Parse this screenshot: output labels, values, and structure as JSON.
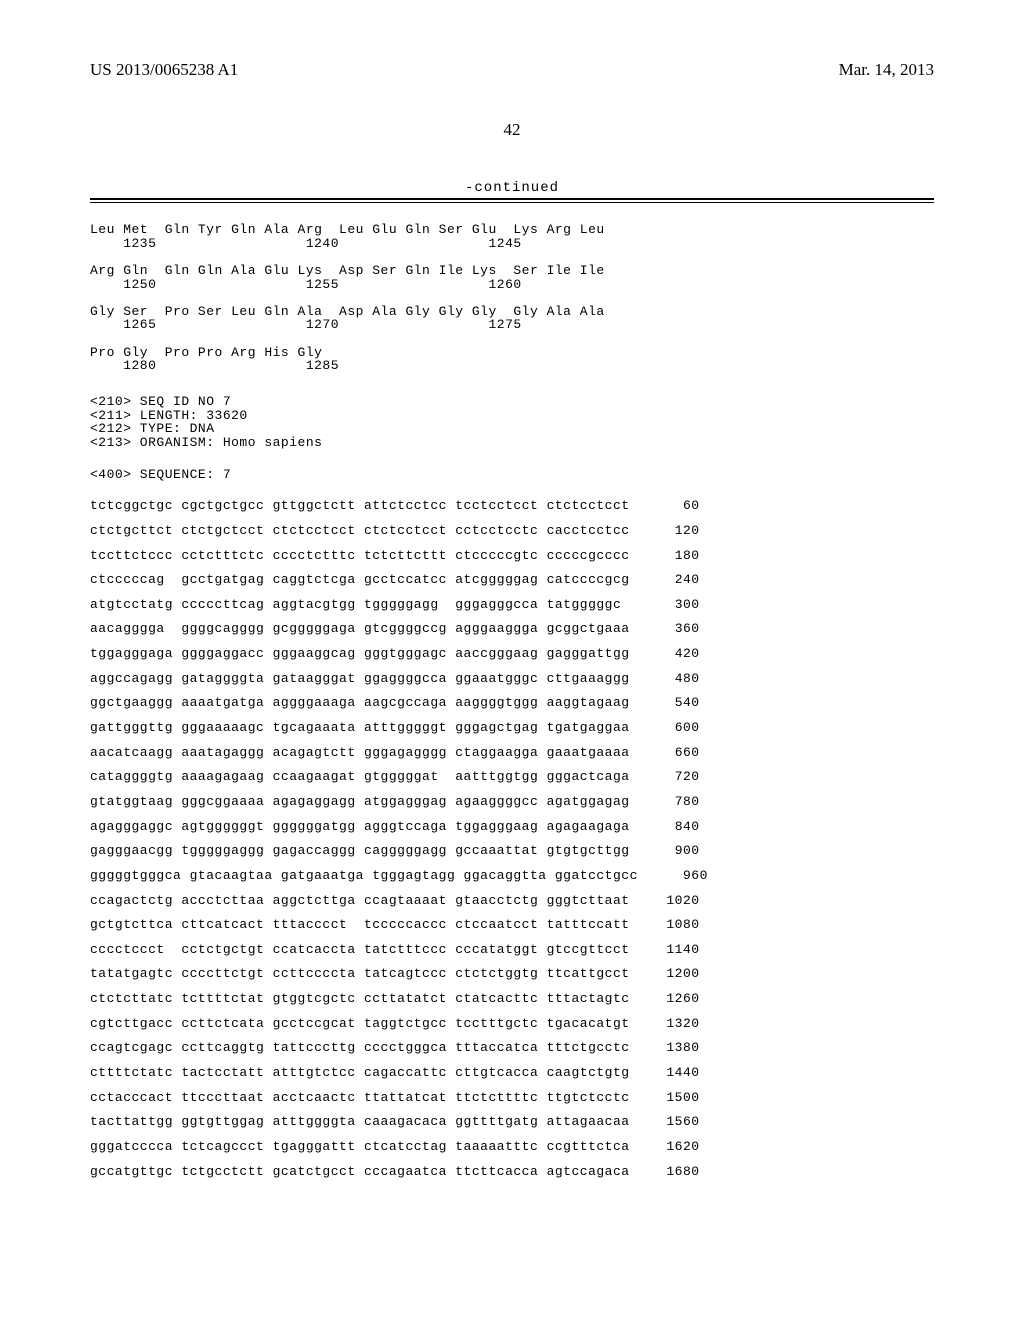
{
  "header": {
    "left": "US 2013/0065238 A1",
    "right": "Mar. 14, 2013"
  },
  "page_number": "42",
  "continued_label": "-continued",
  "protein_rows": [
    {
      "aa": "Leu Met  Gln Tyr Gln Ala Arg  Leu Glu Gln Ser Glu  Lys Arg Leu",
      "pos": "    1235                  1240                  1245"
    },
    {
      "aa": "Arg Gln  Gln Gln Ala Glu Lys  Asp Ser Gln Ile Lys  Ser Ile Ile",
      "pos": "    1250                  1255                  1260"
    },
    {
      "aa": "Gly Ser  Pro Ser Leu Gln Ala  Asp Ala Gly Gly Gly  Gly Ala Ala",
      "pos": "    1265                  1270                  1275"
    },
    {
      "aa": "Pro Gly  Pro Pro Arg His Gly",
      "pos": "    1280                  1285"
    }
  ],
  "meta": [
    "<210> SEQ ID NO 7",
    "<211> LENGTH: 33620",
    "<212> TYPE: DNA",
    "<213> ORGANISM: Homo sapiens"
  ],
  "sequence_label": "<400> SEQUENCE: 7",
  "seq_rows": [
    {
      "g": [
        "tctcggctgc",
        "cgctgctgcc",
        "gttggctctt",
        "attctcctcc",
        "tcctcctcct",
        "ctctcctcct"
      ],
      "p": "60"
    },
    {
      "g": [
        "ctctgcttct",
        "ctctgctcct",
        "ctctcctcct",
        "ctctcctcct",
        "cctcctcctc",
        "cacctcctcc"
      ],
      "p": "120"
    },
    {
      "g": [
        "tccttctccc",
        "cctctttctc",
        "cccctctttc",
        "tctcttcttt",
        "ctcccccgtc",
        "cccccgcccc"
      ],
      "p": "180"
    },
    {
      "g": [
        "ctcccccag",
        "gcctgatgag",
        "caggtctcga",
        "gcctccatcc",
        "atcgggggag",
        "catccccgcg"
      ],
      "p": "240"
    },
    {
      "g": [
        "atgtcctatg",
        "cccccttcag",
        "aggtacgtgg",
        "tgggggagg",
        "gggagggcca",
        "tatgggggc"
      ],
      "p": "300"
    },
    {
      "g": [
        "aacagggga",
        "ggggcagggg",
        "gcgggggaga",
        "gtcggggccg",
        "agggaaggga",
        "gcggctgaaa"
      ],
      "p": "360"
    },
    {
      "g": [
        "tggagggaga",
        "ggggaggacc",
        "gggaaggcag",
        "gggtgggagc",
        "aaccgggaag",
        "gagggattgg"
      ],
      "p": "420"
    },
    {
      "g": [
        "aggccagagg",
        "gataggggta",
        "gataagggat",
        "ggaggggcca",
        "ggaaatgggc",
        "cttgaaaggg"
      ],
      "p": "480"
    },
    {
      "g": [
        "ggctgaaggg",
        "aaaatgatga",
        "aggggaaaga",
        "aagcgccaga",
        "aaggggtggg",
        "aaggtagaag"
      ],
      "p": "540"
    },
    {
      "g": [
        "gattgggttg",
        "gggaaaaagc",
        "tgcagaaata",
        "atttgggggt",
        "gggagctgag",
        "tgatgaggaa"
      ],
      "p": "600"
    },
    {
      "g": [
        "aacatcaagg",
        "aaatagaggg",
        "acagagtctt",
        "gggagagggg",
        "ctaggaagga",
        "gaaatgaaaa"
      ],
      "p": "660"
    },
    {
      "g": [
        "cataggggtg",
        "aaaagagaag",
        "ccaagaagat",
        "gtgggggat",
        "aatttggtgg",
        "gggactcaga"
      ],
      "p": "720"
    },
    {
      "g": [
        "gtatggtaag",
        "gggcggaaaa",
        "agagaggagg",
        "atggagggag",
        "agaaggggcc",
        "agatggagag"
      ],
      "p": "780"
    },
    {
      "g": [
        "agagggaggc",
        "agtggggggt",
        "ggggggatgg",
        "agggtccaga",
        "tggagggaag",
        "agagaagaga"
      ],
      "p": "840"
    },
    {
      "g": [
        "gagggaacgg",
        "tgggggaggg",
        "gagaccaggg",
        "cagggggagg",
        "gccaaattat",
        "gtgtgcttgg"
      ],
      "p": "900"
    },
    {
      "g": [
        "gggggtgggca",
        "gtacaagtaa",
        "gatgaaatga",
        "tgggagtagg",
        "ggacaggtta",
        "ggatcctgcc"
      ],
      "p": "960"
    },
    {
      "g": [
        "ccagactctg",
        "accctcttaa",
        "aggctcttga",
        "ccagtaaaat",
        "gtaacctctg",
        "gggtcttaat"
      ],
      "p": "1020"
    },
    {
      "g": [
        "gctgtcttca",
        "cttcatcact",
        "tttacccct",
        "tcccccaccc",
        "ctccaatcct",
        "tatttccatt"
      ],
      "p": "1080"
    },
    {
      "g": [
        "cccctccct",
        "cctctgctgt",
        "ccatcaccta",
        "tatctttccc",
        "cccatatggt",
        "gtccgttcct"
      ],
      "p": "1140"
    },
    {
      "g": [
        "tatatgagtc",
        "ccccttctgt",
        "ccttccccta",
        "tatcagtccc",
        "ctctctggtg",
        "ttcattgcct"
      ],
      "p": "1200"
    },
    {
      "g": [
        "ctctcttatc",
        "tcttttctat",
        "gtggtcgctc",
        "ccttatatct",
        "ctatcacttc",
        "tttactagtc"
      ],
      "p": "1260"
    },
    {
      "g": [
        "cgtcttgacc",
        "ccttctcata",
        "gcctccgcat",
        "taggtctgcc",
        "tcctttgctc",
        "tgacacatgt"
      ],
      "p": "1320"
    },
    {
      "g": [
        "ccagtcgagc",
        "ccttcaggtg",
        "tattcccttg",
        "cccctgggca",
        "tttaccatca",
        "tttctgcctc"
      ],
      "p": "1380"
    },
    {
      "g": [
        "cttttctatc",
        "tactcctatt",
        "atttgtctcc",
        "cagaccattc",
        "cttgtcacca",
        "caagtctgtg"
      ],
      "p": "1440"
    },
    {
      "g": [
        "cctacccact",
        "ttcccttaat",
        "acctcaactc",
        "ttattatcat",
        "ttctcttttc",
        "ttgtctcctc"
      ],
      "p": "1500"
    },
    {
      "g": [
        "tacttattgg",
        "ggtgttggag",
        "atttggggta",
        "caaagacaca",
        "ggttttgatg",
        "attagaacaa"
      ],
      "p": "1560"
    },
    {
      "g": [
        "gggatcccca",
        "tctcagccct",
        "tgagggattt",
        "ctcatcctag",
        "taaaaatttc",
        "ccgtttctca"
      ],
      "p": "1620"
    },
    {
      "g": [
        "gccatgttgc",
        "tctgcctctt",
        "gcatctgcct",
        "cccagaatca",
        "ttcttcacca",
        "agtccagaca"
      ],
      "p": "1680"
    }
  ]
}
